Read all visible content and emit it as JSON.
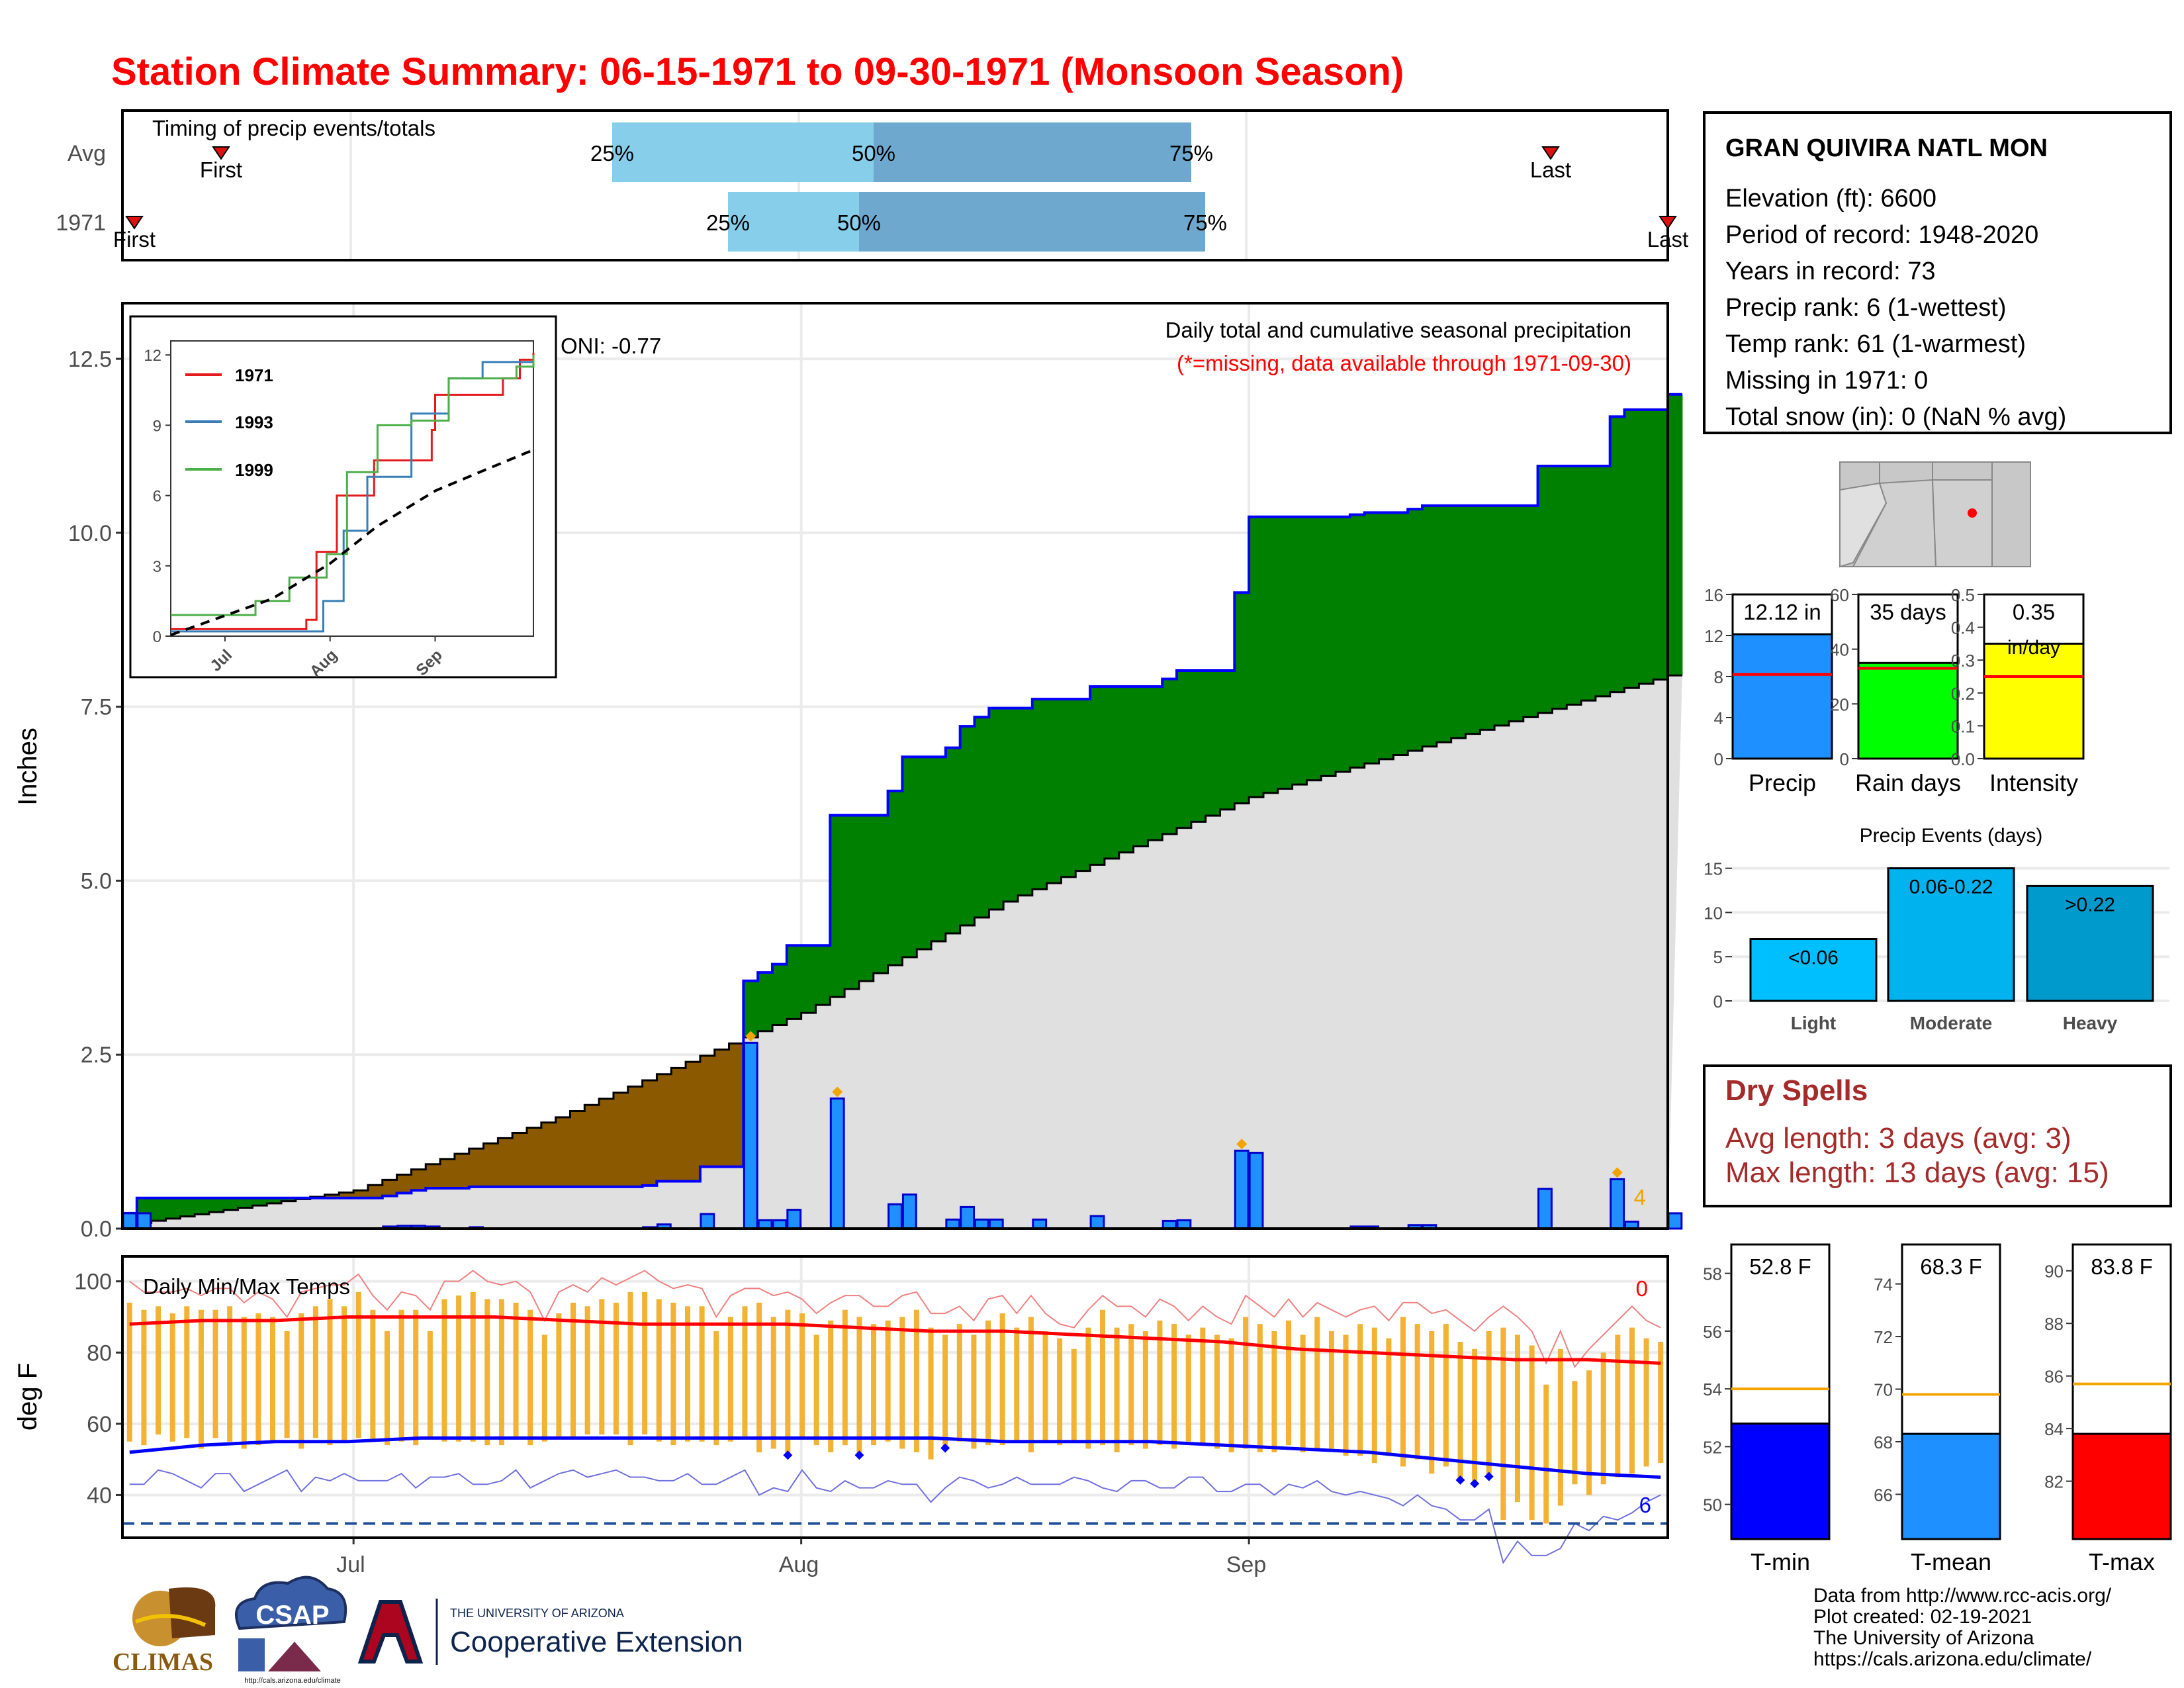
{
  "title": "Station Climate Summary: 06-15-1971 to 09-30-1971 (Monsoon Season)",
  "timing": {
    "label": "Timing of precip events/totals",
    "rows": [
      {
        "name": "Avg",
        "first": "First",
        "last": "Last",
        "q25": "25%",
        "q50": "50%",
        "q75": "75%"
      },
      {
        "name": "1971",
        "first": "First",
        "last": "Last",
        "q25": "25%",
        "q50": "50%",
        "q75": "75%"
      }
    ]
  },
  "months": [
    "Jul",
    "Aug",
    "Sep"
  ],
  "precip_panel": {
    "ylabel": "Inches",
    "yticks": [
      "0.0",
      "2.5",
      "5.0",
      "7.5",
      "10.0",
      "12.5"
    ],
    "label": "Daily total and cumulative seasonal precipitation",
    "missing_note": "(*=missing, data available through 1971-09-30)",
    "oni": "ONI: -0.77",
    "extreme_count": "4"
  },
  "inset": {
    "yticks": [
      "0",
      "3",
      "6",
      "9",
      "12"
    ],
    "xticks": [
      "Jul",
      "Aug",
      "Sep"
    ],
    "legend": [
      {
        "year": "1971",
        "color": "#e41a1c"
      },
      {
        "year": "1993",
        "color": "#377eb8"
      },
      {
        "year": "1999",
        "color": "#4daf4a"
      }
    ]
  },
  "temp_panel": {
    "ylabel": "deg F",
    "label": "Daily Min/Max Temps",
    "yticks": [
      "40",
      "60",
      "80",
      "100"
    ],
    "max_count": "0",
    "min_count": "6"
  },
  "station": {
    "name": "GRAN QUIVIRA NATL MON",
    "lines": [
      "Elevation (ft): 6600",
      "Period of record: 1948-2020",
      "Years in record: 73",
      "Precip rank: 6 (1-wettest)",
      "Temp rank: 61 (1-warmest)",
      "Missing in 1971: 0",
      "Total snow (in): 0 (NaN % avg)"
    ]
  },
  "summary_bars": [
    {
      "name": "Precip",
      "value_label": "12.12 in",
      "value": 12.12,
      "avg": 8.2,
      "ymax": 16,
      "yticks": [
        "0",
        "4",
        "8",
        "12",
        "16"
      ],
      "color": "#1e90ff"
    },
    {
      "name": "Rain days",
      "value_label": "35 days",
      "value": 35,
      "avg": 33,
      "ymax": 60,
      "yticks": [
        "0",
        "20",
        "40",
        "60"
      ],
      "color": "#00ff00"
    },
    {
      "name": "Intensity",
      "value_label": "0.35",
      "value_label2": "in/day",
      "value": 0.35,
      "avg": 0.25,
      "ymax": 0.5,
      "yticks": [
        "0.0",
        "0.1",
        "0.2",
        "0.3",
        "0.4",
        "0.5"
      ],
      "color": "#ffff00"
    }
  ],
  "precip_events": {
    "title": "Precip Events (days)",
    "yticks": [
      "0",
      "5",
      "10",
      "15"
    ],
    "bars": [
      {
        "name": "Light",
        "label": "<0.06",
        "value": 7,
        "color": "#00bfff"
      },
      {
        "name": "Moderate",
        "label": "0.06-0.22",
        "value": 15,
        "color": "#00b2ee"
      },
      {
        "name": "Heavy",
        "label": ">0.22",
        "value": 13,
        "color": "#009acd"
      }
    ]
  },
  "dry_spells": {
    "title": "Dry Spells",
    "avg": "Avg length: 3 days (avg: 3)",
    "max": "Max length: 13 days (avg: 15)"
  },
  "temp_bars": [
    {
      "name": "T-min",
      "value_label": "52.8 F",
      "value": 52.8,
      "avg": 54.0,
      "ymin": 48.8,
      "ymax": 59,
      "yticks": [
        "50",
        "52",
        "54",
        "56",
        "58"
      ],
      "color": "#0000ff"
    },
    {
      "name": "T-mean",
      "value_label": "68.3 F",
      "value": 68.3,
      "avg": 69.8,
      "ymin": 64.3,
      "ymax": 75.5,
      "yticks": [
        "66",
        "68",
        "70",
        "72",
        "74"
      ],
      "color": "#1e90ff"
    },
    {
      "name": "T-max",
      "value_label": "83.8 F",
      "value": 83.8,
      "avg": 85.7,
      "ymin": 79.8,
      "ymax": 91,
      "yticks": [
        "82",
        "84",
        "86",
        "88",
        "90"
      ],
      "color": "#ff0000"
    }
  ],
  "footer": {
    "lines": [
      "Data from http://www.rcc-acis.org/",
      "Plot created: 02-19-2021",
      "The University of Arizona",
      "https://cals.arizona.edu/climate/"
    ],
    "logos": {
      "climas": "CLIMAS",
      "csap": "CSAP",
      "csap_url": "http://cals.arizona.edu/climate",
      "ua_small": "THE UNIVERSITY OF ARIZONA",
      "ua_big": "Cooperative Extension"
    }
  },
  "chart_data": [
    {
      "type": "area",
      "title": "Daily total and cumulative seasonal precipitation",
      "ylabel": "Inches",
      "ylim": [
        0,
        13.3
      ],
      "x_start": "1971-06-15",
      "x_end": "1971-09-30",
      "daily_precip": [
        {
          "date": "1971-06-15",
          "value": 0.22
        },
        {
          "date": "1971-06-16",
          "value": 0.22
        },
        {
          "date": "1971-07-03",
          "value": 0.03
        },
        {
          "date": "1971-07-04",
          "value": 0.04
        },
        {
          "date": "1971-07-05",
          "value": 0.04
        },
        {
          "date": "1971-07-06",
          "value": 0.03
        },
        {
          "date": "1971-07-09",
          "value": 0.02
        },
        {
          "date": "1971-07-21",
          "value": 0.02
        },
        {
          "date": "1971-07-22",
          "value": 0.06
        },
        {
          "date": "1971-07-25",
          "value": 0.21
        },
        {
          "date": "1971-07-28",
          "value": 2.67
        },
        {
          "date": "1971-07-29",
          "value": 0.12
        },
        {
          "date": "1971-07-30",
          "value": 0.12
        },
        {
          "date": "1971-07-31",
          "value": 0.27
        },
        {
          "date": "1971-08-03",
          "value": 1.87
        },
        {
          "date": "1971-08-07",
          "value": 0.35
        },
        {
          "date": "1971-08-08",
          "value": 0.49
        },
        {
          "date": "1971-08-11",
          "value": 0.13
        },
        {
          "date": "1971-08-12",
          "value": 0.31
        },
        {
          "date": "1971-08-13",
          "value": 0.13
        },
        {
          "date": "1971-08-14",
          "value": 0.13
        },
        {
          "date": "1971-08-17",
          "value": 0.13
        },
        {
          "date": "1971-08-21",
          "value": 0.18
        },
        {
          "date": "1971-08-26",
          "value": 0.11
        },
        {
          "date": "1971-08-27",
          "value": 0.12
        },
        {
          "date": "1971-08-31",
          "value": 1.12
        },
        {
          "date": "1971-09-01",
          "value": 1.09
        },
        {
          "date": "1971-09-08",
          "value": 0.03
        },
        {
          "date": "1971-09-09",
          "value": 0.03
        },
        {
          "date": "1971-09-12",
          "value": 0.05
        },
        {
          "date": "1971-09-13",
          "value": 0.05
        },
        {
          "date": "1971-09-21",
          "value": 0.57
        },
        {
          "date": "1971-09-26",
          "value": 0.71
        },
        {
          "date": "1971-09-27",
          "value": 0.1
        },
        {
          "date": "1971-09-30",
          "value": 0.22
        }
      ],
      "extreme_days": [
        "1971-07-28",
        "1971-08-03",
        "1971-08-31",
        "1971-09-26"
      ],
      "avg_cumulative": [
        {
          "date": "1971-06-15",
          "value": 0.05
        },
        {
          "date": "1971-07-01",
          "value": 0.55
        },
        {
          "date": "1971-07-15",
          "value": 1.6
        },
        {
          "date": "1971-07-28",
          "value": 2.75
        },
        {
          "date": "1971-08-01",
          "value": 3.1
        },
        {
          "date": "1971-08-15",
          "value": 4.7
        },
        {
          "date": "1971-09-01",
          "value": 6.2
        },
        {
          "date": "1971-09-15",
          "value": 7.05
        },
        {
          "date": "1971-09-30",
          "value": 7.95
        }
      ]
    },
    {
      "type": "line",
      "title": "Inset: cumulative precipitation comparison",
      "ylim": [
        0,
        12
      ],
      "series": [
        {
          "name": "1971",
          "points": [
            {
              "date": "1971-06-15",
              "value": 0.3
            },
            {
              "date": "1971-07-25",
              "value": 0.7
            },
            {
              "date": "1971-07-28",
              "value": 3.6
            },
            {
              "date": "1971-08-03",
              "value": 6.0
            },
            {
              "date": "1971-08-14",
              "value": 7.5
            },
            {
              "date": "1971-08-31",
              "value": 8.8
            },
            {
              "date": "1971-09-01",
              "value": 10.3
            },
            {
              "date": "1971-09-21",
              "value": 11.0
            },
            {
              "date": "1971-09-26",
              "value": 11.8
            },
            {
              "date": "1971-09-30",
              "value": 12.1
            }
          ]
        },
        {
          "name": "1993",
          "points": [
            {
              "date": "1971-06-15",
              "value": 0.2
            },
            {
              "date": "1971-07-30",
              "value": 1.5
            },
            {
              "date": "1971-08-05",
              "value": 4.5
            },
            {
              "date": "1971-08-12",
              "value": 6.8
            },
            {
              "date": "1971-08-25",
              "value": 9.5
            },
            {
              "date": "1971-09-05",
              "value": 11.0
            },
            {
              "date": "1971-09-15",
              "value": 11.7
            },
            {
              "date": "1971-09-30",
              "value": 12.0
            }
          ]
        },
        {
          "name": "1999",
          "points": [
            {
              "date": "1971-06-15",
              "value": 0.9
            },
            {
              "date": "1971-07-10",
              "value": 1.5
            },
            {
              "date": "1971-07-20",
              "value": 2.5
            },
            {
              "date": "1971-07-31",
              "value": 3.5
            },
            {
              "date": "1971-08-06",
              "value": 7.0
            },
            {
              "date": "1971-08-15",
              "value": 9.0
            },
            {
              "date": "1971-08-25",
              "value": 9.2
            },
            {
              "date": "1971-09-05",
              "value": 11.0
            },
            {
              "date": "1971-09-25",
              "value": 11.5
            },
            {
              "date": "1971-09-30",
              "value": 12.0
            }
          ]
        },
        {
          "name": "avg",
          "points": [
            {
              "date": "1971-06-15",
              "value": 0.05
            },
            {
              "date": "1971-07-15",
              "value": 1.6
            },
            {
              "date": "1971-08-01",
              "value": 3.1
            },
            {
              "date": "1971-08-15",
              "value": 4.7
            },
            {
              "date": "1971-09-01",
              "value": 6.2
            },
            {
              "date": "1971-09-15",
              "value": 7.05
            },
            {
              "date": "1971-09-30",
              "value": 7.95
            }
          ]
        }
      ]
    },
    {
      "type": "bar",
      "title": "Daily Min/Max Temps",
      "ylabel": "deg F",
      "ylim": [
        28,
        107
      ],
      "x_start": "1971-06-15",
      "x_end": "1971-09-30",
      "tmax": [
        94,
        92,
        93,
        91,
        93,
        92,
        92,
        93,
        90,
        91,
        90,
        86,
        91,
        93,
        95,
        93,
        97,
        92,
        86,
        92,
        92,
        86,
        95,
        96,
        97,
        95,
        95,
        94,
        92,
        85,
        91,
        94,
        93,
        95,
        94,
        97,
        97,
        95,
        94,
        93,
        93,
        86,
        90,
        93,
        94,
        90,
        92,
        91,
        85,
        89,
        92,
        90,
        88,
        89,
        90,
        92,
        87,
        85,
        88,
        85,
        89,
        91,
        87,
        90,
        86,
        84,
        81,
        87,
        92,
        87,
        88,
        86,
        89,
        88,
        85,
        87,
        85,
        84,
        90,
        88,
        86,
        89,
        85,
        90,
        86,
        85,
        88,
        87,
        84,
        90,
        88,
        86,
        88,
        83,
        81,
        86,
        87,
        85,
        82,
        71,
        81,
        72,
        75,
        80,
        85,
        87,
        84,
        83
      ],
      "tmin": [
        55,
        54,
        57,
        55,
        56,
        53,
        56,
        55,
        53,
        54,
        55,
        56,
        53,
        56,
        54,
        55,
        56,
        55,
        54,
        55,
        54,
        56,
        55,
        55,
        55,
        54,
        54,
        56,
        54,
        55,
        56,
        56,
        57,
        57,
        57,
        54,
        57,
        55,
        54,
        55,
        55,
        54,
        55,
        56,
        52,
        53,
        51,
        56,
        54,
        52,
        54,
        51,
        54,
        55,
        53,
        52,
        50,
        53,
        55,
        53,
        54,
        54,
        55,
        52,
        55,
        54,
        55,
        53,
        54,
        52,
        54,
        53,
        54,
        53,
        55,
        54,
        53,
        52,
        53,
        52,
        52,
        54,
        52,
        53,
        53,
        51,
        51,
        49,
        51,
        48,
        50,
        46,
        48,
        44,
        43,
        45,
        33,
        38,
        33,
        32,
        37,
        43,
        40,
        43,
        45,
        46,
        48,
        49
      ],
      "avg_tmax": [
        88,
        89,
        89,
        90,
        90,
        90,
        89,
        88,
        88,
        88,
        87,
        86,
        86,
        85,
        84,
        83,
        81,
        80,
        79,
        78,
        78,
        77
      ],
      "avg_tmin": [
        52,
        54,
        55,
        55,
        56,
        56,
        56,
        56,
        56,
        56,
        56,
        56,
        55,
        55,
        55,
        54,
        53,
        52,
        50,
        48,
        46,
        45
      ],
      "record_min_line": 32,
      "record_min_days": [
        "1971-07-31",
        "1971-08-05",
        "1971-08-11",
        "1971-09-16",
        "1971-09-17",
        "1971-09-18"
      ]
    }
  ]
}
